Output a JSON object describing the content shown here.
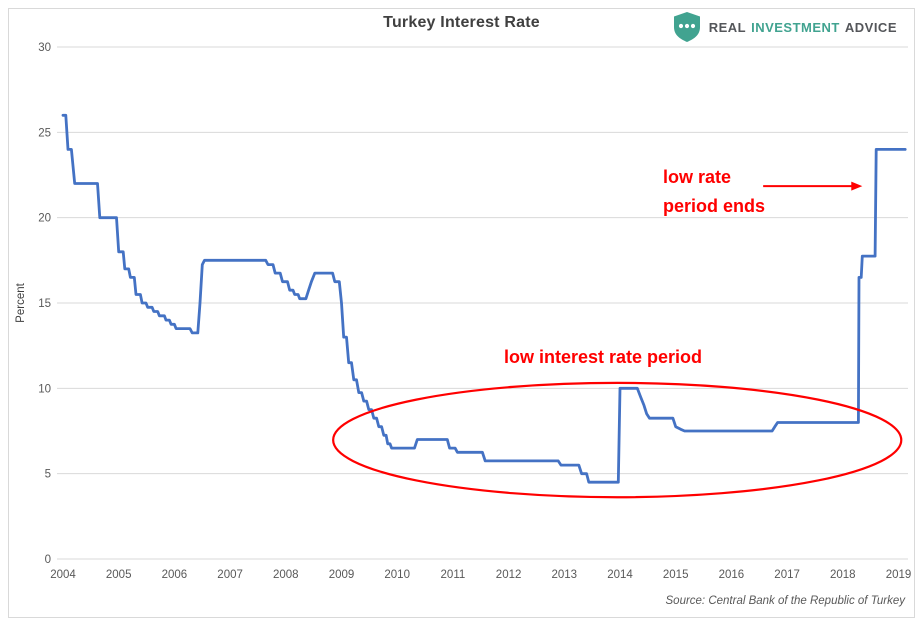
{
  "title": "Turkey Interest Rate",
  "logo": {
    "real": "REAL",
    "investment": "INVESTMENT",
    "advice": "ADVICE"
  },
  "annotations": {
    "low_rate_ends_line1": "low rate",
    "low_rate_ends_line2": "period ends",
    "low_period_label": "low interest rate period"
  },
  "source": "Source: Central Bank of the Republic of Turkey",
  "colors": {
    "line": "#4472C4",
    "grid": "#D9D9D9",
    "axis_text": "#595959",
    "title_text": "#404040",
    "annotation_red": "#FF0000",
    "logo_teal": "#41A390",
    "logo_dark": "#54565A",
    "frame_border": "#D9D9D9"
  },
  "chart_data": {
    "type": "line",
    "title": "Turkey Interest Rate",
    "xlabel": "",
    "ylabel": "Percent",
    "ylim": [
      0,
      30
    ],
    "y_ticks": [
      0,
      5,
      10,
      15,
      20,
      25,
      30
    ],
    "x_ticks": [
      2004,
      2005,
      2006,
      2007,
      2008,
      2009,
      2010,
      2011,
      2012,
      2013,
      2014,
      2015,
      2016,
      2017,
      2018,
      2019
    ],
    "xlim": [
      2004,
      2019.15
    ],
    "grid": true,
    "legend": false,
    "series": [
      {
        "name": "Turkey Interest Rate (%)",
        "color": "#4472C4",
        "points": [
          [
            2004.0,
            26
          ],
          [
            2004.05,
            26
          ],
          [
            2004.09,
            24
          ],
          [
            2004.15,
            24
          ],
          [
            2004.21,
            22
          ],
          [
            2004.62,
            22
          ],
          [
            2004.66,
            20
          ],
          [
            2004.96,
            20
          ],
          [
            2005.0,
            18
          ],
          [
            2005.08,
            18
          ],
          [
            2005.11,
            17
          ],
          [
            2005.18,
            17
          ],
          [
            2005.21,
            16.5
          ],
          [
            2005.28,
            16.5
          ],
          [
            2005.31,
            15.5
          ],
          [
            2005.39,
            15.5
          ],
          [
            2005.42,
            15
          ],
          [
            2005.49,
            15
          ],
          [
            2005.52,
            14.75
          ],
          [
            2005.6,
            14.75
          ],
          [
            2005.63,
            14.5
          ],
          [
            2005.7,
            14.5
          ],
          [
            2005.73,
            14.25
          ],
          [
            2005.82,
            14.25
          ],
          [
            2005.85,
            14
          ],
          [
            2005.91,
            14
          ],
          [
            2005.94,
            13.75
          ],
          [
            2006.0,
            13.75
          ],
          [
            2006.03,
            13.5
          ],
          [
            2006.28,
            13.5
          ],
          [
            2006.32,
            13.25
          ],
          [
            2006.42,
            13.25
          ],
          [
            2006.46,
            15
          ],
          [
            2006.5,
            17.25
          ],
          [
            2006.54,
            17.5
          ],
          [
            2007.64,
            17.5
          ],
          [
            2007.68,
            17.25
          ],
          [
            2007.77,
            17.25
          ],
          [
            2007.81,
            16.75
          ],
          [
            2007.9,
            16.75
          ],
          [
            2007.94,
            16.25
          ],
          [
            2008.03,
            16.25
          ],
          [
            2008.07,
            15.75
          ],
          [
            2008.13,
            15.75
          ],
          [
            2008.16,
            15.5
          ],
          [
            2008.22,
            15.5
          ],
          [
            2008.25,
            15.25
          ],
          [
            2008.36,
            15.25
          ],
          [
            2008.41,
            15.75
          ],
          [
            2008.46,
            16.25
          ],
          [
            2008.52,
            16.75
          ],
          [
            2008.84,
            16.75
          ],
          [
            2008.88,
            16.25
          ],
          [
            2008.96,
            16.25
          ],
          [
            2009.0,
            15
          ],
          [
            2009.04,
            13
          ],
          [
            2009.09,
            13
          ],
          [
            2009.13,
            11.5
          ],
          [
            2009.18,
            11.5
          ],
          [
            2009.22,
            10.5
          ],
          [
            2009.27,
            10.5
          ],
          [
            2009.31,
            9.75
          ],
          [
            2009.36,
            9.75
          ],
          [
            2009.4,
            9.25
          ],
          [
            2009.45,
            9.25
          ],
          [
            2009.49,
            8.75
          ],
          [
            2009.54,
            8.75
          ],
          [
            2009.58,
            8.25
          ],
          [
            2009.63,
            8.25
          ],
          [
            2009.67,
            7.75
          ],
          [
            2009.72,
            7.75
          ],
          [
            2009.76,
            7.25
          ],
          [
            2009.8,
            7.25
          ],
          [
            2009.83,
            6.75
          ],
          [
            2009.87,
            6.75
          ],
          [
            2009.9,
            6.5
          ],
          [
            2010.31,
            6.5
          ],
          [
            2010.36,
            7
          ],
          [
            2010.9,
            7
          ],
          [
            2010.94,
            6.5
          ],
          [
            2011.04,
            6.5
          ],
          [
            2011.08,
            6.25
          ],
          [
            2011.53,
            6.25
          ],
          [
            2011.58,
            5.75
          ],
          [
            2012.89,
            5.75
          ],
          [
            2012.94,
            5.5
          ],
          [
            2013.26,
            5.5
          ],
          [
            2013.31,
            5
          ],
          [
            2013.4,
            5
          ],
          [
            2013.44,
            4.5
          ],
          [
            2013.97,
            4.5
          ],
          [
            2014.0,
            10
          ],
          [
            2014.31,
            10
          ],
          [
            2014.37,
            9.5
          ],
          [
            2014.43,
            9
          ],
          [
            2014.48,
            8.5
          ],
          [
            2014.53,
            8.25
          ],
          [
            2014.95,
            8.25
          ],
          [
            2015.0,
            7.75
          ],
          [
            2015.09,
            7.6
          ],
          [
            2015.16,
            7.5
          ],
          [
            2016.73,
            7.5
          ],
          [
            2016.78,
            7.75
          ],
          [
            2016.83,
            8
          ],
          [
            2018.28,
            8
          ],
          [
            2018.29,
            16.5
          ],
          [
            2018.33,
            16.5
          ],
          [
            2018.35,
            17.75
          ],
          [
            2018.58,
            17.75
          ],
          [
            2018.6,
            24
          ],
          [
            2019.12,
            24
          ]
        ]
      }
    ],
    "shape_annotations": {
      "ellipse": {
        "cx_year": 2013.95,
        "cy_value": 6.97,
        "rx_years": 5.1,
        "ry_values": 3.35,
        "color": "#FF0000"
      },
      "arrow": {
        "from_year": 2016.57,
        "to_year": 2018.35,
        "at_value": 21.85,
        "color": "#FF0000"
      }
    }
  }
}
